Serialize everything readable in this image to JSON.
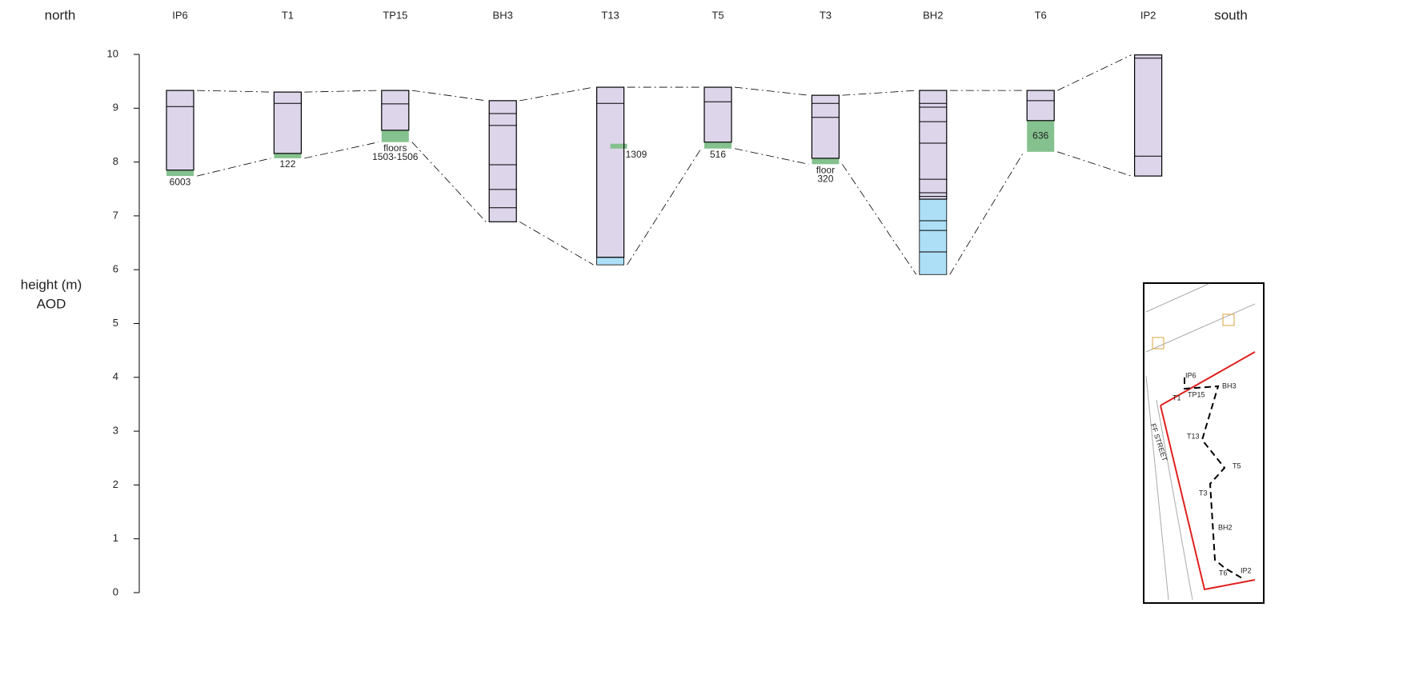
{
  "chart_data": {
    "type": "section",
    "left_label": "north",
    "right_label": "south",
    "y_label": [
      "height (m)",
      "AOD"
    ],
    "ylim": [
      0,
      10
    ],
    "yticks": [
      0,
      1,
      2,
      3,
      4,
      5,
      6,
      7,
      8,
      9,
      10
    ],
    "colors": {
      "fill": "#ddd5ea",
      "green": "#85c18e",
      "blue": "#ade0f7"
    },
    "columns": [
      {
        "name": "IP6",
        "boundaries": [
          9.33,
          9.03,
          7.85
        ],
        "green": [
          7.85,
          7.74
        ],
        "label": [
          "6003"
        ]
      },
      {
        "name": "T1",
        "boundaries": [
          9.3,
          9.09,
          8.16
        ],
        "green": [
          8.16,
          8.07
        ],
        "label": [
          "122"
        ]
      },
      {
        "name": "TP15",
        "boundaries": [
          9.33,
          9.08,
          8.59
        ],
        "green": [
          8.59,
          8.37
        ],
        "label": [
          "floors",
          "1503-1506"
        ]
      },
      {
        "name": "BH3",
        "boundaries": [
          9.14,
          8.9,
          8.68,
          7.95,
          7.49,
          7.15,
          6.89
        ]
      },
      {
        "name": "T13",
        "boundaries": [
          9.39,
          9.09,
          6.23
        ],
        "green": [
          8.34,
          8.25
        ],
        "blue": [
          6.23,
          6.09
        ],
        "label": [
          "1309"
        ],
        "label_side": "right"
      },
      {
        "name": "T5",
        "boundaries": [
          9.39,
          9.12,
          8.37
        ],
        "green": [
          8.37,
          8.25
        ],
        "label": [
          "516"
        ]
      },
      {
        "name": "T3",
        "boundaries": [
          9.24,
          9.09,
          8.83,
          8.07
        ],
        "green": [
          8.07,
          7.96
        ],
        "label": [
          "floor",
          "320"
        ]
      },
      {
        "name": "BH2",
        "boundaries": [
          9.33,
          9.09,
          9.02,
          8.75,
          8.35,
          7.68,
          7.43,
          7.36,
          7.31
        ],
        "blue": [
          7.31,
          5.91
        ],
        "blue_lines": [
          6.91,
          6.73,
          6.33
        ]
      },
      {
        "name": "T6",
        "boundaries": [
          9.33,
          9.14,
          8.77
        ],
        "green": [
          8.77,
          8.19
        ],
        "label": [
          "636"
        ],
        "label_inside": true
      },
      {
        "name": "IP2",
        "boundaries": [
          9.99,
          9.93,
          8.11,
          7.74
        ]
      }
    ]
  },
  "map": {
    "street": "FF STREET",
    "labels": [
      {
        "text": "IP6",
        "color": "#1f4fbf"
      },
      {
        "text": "T1",
        "color": "#555555"
      },
      {
        "text": "TP15",
        "color": "#5cb85c"
      },
      {
        "text": "BH3",
        "color": "#9b2c9b"
      },
      {
        "text": "T13",
        "color": "#555555"
      },
      {
        "text": "T5",
        "color": "#555555"
      },
      {
        "text": "T3",
        "color": "#555555"
      },
      {
        "text": "BH2",
        "color": "#9b2c9b"
      },
      {
        "text": "T6",
        "color": "#555555"
      },
      {
        "text": "IP2",
        "color": "#1f4fbf"
      }
    ]
  }
}
